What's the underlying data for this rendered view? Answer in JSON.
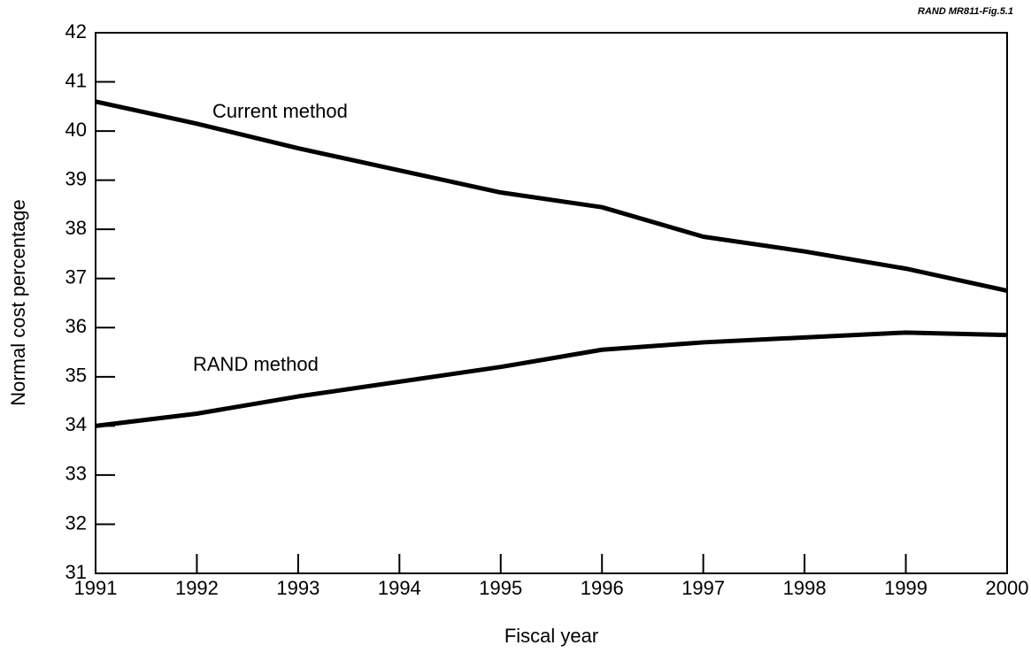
{
  "chart_data": {
    "type": "line",
    "note": "RAND MR811-Fig.5.1",
    "x_label": "Fiscal year",
    "y_label": "Normal cost percentage",
    "x": [
      1991,
      1992,
      1993,
      1994,
      1995,
      1996,
      1997,
      1998,
      1999,
      2000
    ],
    "series": [
      {
        "name": "Current method",
        "color": "#000000",
        "values": [
          40.6,
          40.15,
          39.65,
          39.2,
          38.75,
          38.45,
          37.85,
          37.55,
          37.2,
          36.75
        ]
      },
      {
        "name": "RAND method",
        "color": "#000000",
        "values": [
          34.0,
          34.25,
          34.6,
          34.9,
          35.2,
          35.55,
          35.7,
          35.8,
          35.9,
          35.85
        ]
      }
    ],
    "xlim": [
      1991,
      2000
    ],
    "xticks": [
      1991,
      1992,
      1993,
      1994,
      1995,
      1996,
      1997,
      1998,
      1999,
      2000
    ],
    "ylim": [
      31,
      42
    ],
    "yticks": [
      31,
      32,
      33,
      34,
      35,
      36,
      37,
      38,
      39,
      40,
      41,
      42
    ],
    "grid": false
  }
}
